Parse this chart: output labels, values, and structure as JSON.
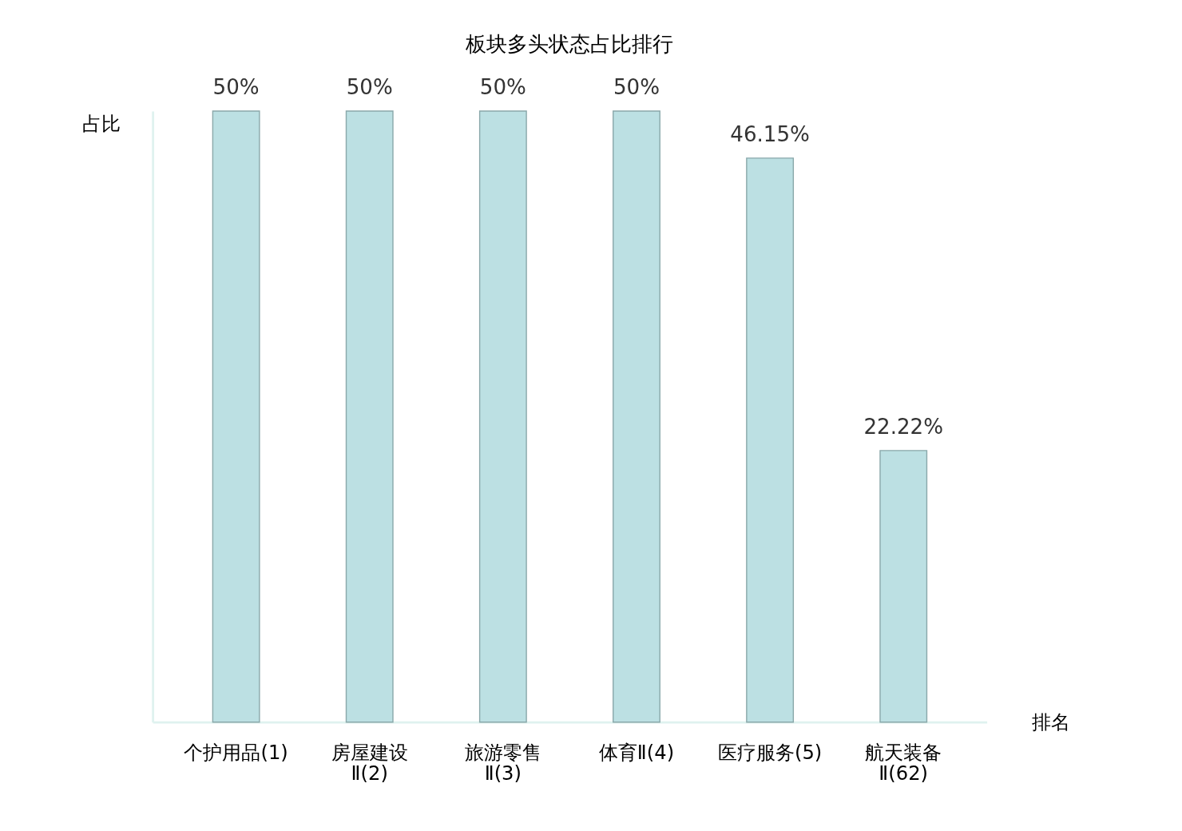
{
  "chart_data": {
    "type": "bar",
    "title": "板块多头状态占比排行",
    "xlabel": "排名",
    "ylabel": "占比",
    "categories": [
      "个护用品(1)",
      "房屋建设Ⅱ(2)",
      "旅游零售Ⅱ(3)",
      "体育Ⅱ(4)",
      "医疗服务(5)",
      "航天装备Ⅱ(62)"
    ],
    "values": [
      50,
      50,
      50,
      50,
      46.15,
      22.22
    ],
    "color": "#bce0e3",
    "value_labels": [
      "50%",
      "50%",
      "50%",
      "50%",
      "46.15%",
      "22.22%"
    ],
    "ylim": [
      0,
      50
    ],
    "tick_labels": "x",
    "grid": false
  }
}
